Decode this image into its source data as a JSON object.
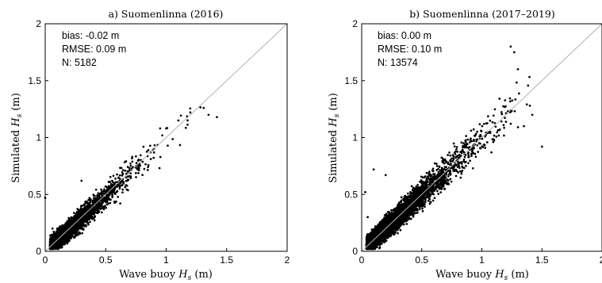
{
  "chart_data": [
    {
      "type": "scatter",
      "title": "a) Suomenlinna (2016)",
      "xlabel": "Wave buoy",
      "ylabel": "Simulated",
      "var_symbol": "H",
      "var_subscript": "s",
      "unit": "(m)",
      "xlim": [
        0,
        2
      ],
      "ylim": [
        0,
        2
      ],
      "xticks": [
        0,
        0.5,
        1,
        1.5,
        2
      ],
      "yticks": [
        0,
        0.5,
        1,
        1.5,
        2
      ],
      "xtick_labels": [
        "0",
        "0.5",
        "1",
        "1.5",
        "2"
      ],
      "ytick_labels": [
        "0",
        "0.5",
        "1",
        "1.5",
        "2"
      ],
      "reference_line": "y = x",
      "grid": false,
      "stats": {
        "bias": "bias: -0.02 m",
        "rmse": "RMSE: 0.09 m",
        "n": "N: 5182"
      },
      "point_count": 5182,
      "cluster": {
        "x_mode": 0.2,
        "y_mode": 0.2,
        "x_max": 1.43,
        "y_max": 1.42,
        "slope": 0.98,
        "spread": 0.09
      },
      "points": [
        [
          0.0,
          0.47
        ],
        [
          0.06,
          0.2
        ],
        [
          1.31,
          1.26
        ],
        [
          1.42,
          1.18
        ],
        [
          1.2,
          1.22
        ],
        [
          1.1,
          1.15
        ],
        [
          1.35,
          1.2
        ],
        [
          1.0,
          1.08
        ],
        [
          0.62,
          0.42
        ],
        [
          0.3,
          0.62
        ]
      ]
    },
    {
      "type": "scatter",
      "title": "b) Suomenlinna (2017–2019)",
      "xlabel": "Wave buoy",
      "ylabel": "Simulated",
      "var_symbol": "H",
      "var_subscript": "s",
      "unit": "(m)",
      "xlim": [
        0,
        2
      ],
      "ylim": [
        0,
        2
      ],
      "xticks": [
        0,
        0.5,
        1,
        1.5,
        2
      ],
      "yticks": [
        0,
        0.5,
        1,
        1.5,
        2
      ],
      "xtick_labels": [
        "0",
        "0.5",
        "1",
        "1.5",
        "2"
      ],
      "ytick_labels": [
        "0",
        "0.5",
        "1",
        "1.5",
        "2"
      ],
      "reference_line": "y = x",
      "grid": false,
      "stats": {
        "bias": "bias: 0.00 m",
        "rmse": "RMSE: 0.10 m",
        "n": "N: 13574"
      },
      "point_count": 13574,
      "cluster": {
        "x_mode": 0.25,
        "y_mode": 0.25,
        "x_max": 1.42,
        "y_max": 1.8,
        "slope": 1.0,
        "spread": 0.1
      },
      "points": [
        [
          1.24,
          1.8
        ],
        [
          1.27,
          1.75
        ],
        [
          1.3,
          1.6
        ],
        [
          1.5,
          0.92
        ],
        [
          0.1,
          0.72
        ],
        [
          0.2,
          0.67
        ],
        [
          0.05,
          0.3
        ],
        [
          1.42,
          1.2
        ],
        [
          0.03,
          0.52
        ],
        [
          1.35,
          1.1
        ]
      ]
    }
  ]
}
